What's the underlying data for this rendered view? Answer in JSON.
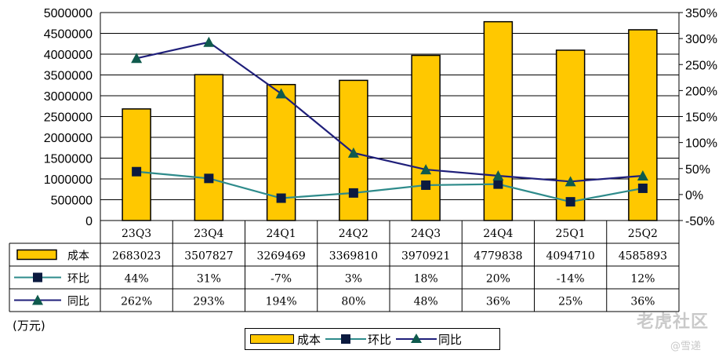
{
  "chart_data": {
    "type": "bar",
    "title": "",
    "categories": [
      "23Q3",
      "23Q4",
      "24Q1",
      "24Q2",
      "24Q3",
      "24Q4",
      "25Q1",
      "25Q2"
    ],
    "unit_label": "(万元)",
    "y_left": {
      "ylim": [
        0,
        5000000
      ],
      "ticks": [
        "0",
        "500000",
        "1000000",
        "1500000",
        "2000000",
        "2500000",
        "3000000",
        "3500000",
        "4000000",
        "4500000",
        "5000000"
      ]
    },
    "y_right": {
      "ylim": [
        -50,
        350
      ],
      "ticks": [
        "-50%",
        "0%",
        "50%",
        "100%",
        "150%",
        "200%",
        "250%",
        "300%",
        "350%"
      ]
    },
    "series": [
      {
        "name": "成本",
        "type": "bar",
        "axis": "left",
        "color": "#ffc800",
        "values": [
          2683023,
          3507827,
          3269469,
          3369810,
          3970921,
          4779838,
          4094710,
          4585893
        ],
        "labels": [
          "2683023",
          "3507827",
          "3269469",
          "3369810",
          "3970921",
          "4779838",
          "4094710",
          "4585893"
        ]
      },
      {
        "name": "环比",
        "type": "line",
        "axis": "right",
        "color": "#2e8b8b",
        "marker": "square",
        "values": [
          44,
          31,
          -7,
          3,
          18,
          20,
          -14,
          12
        ],
        "labels": [
          "44%",
          "31%",
          "-7%",
          "3%",
          "18%",
          "20%",
          "-14%",
          "12%"
        ]
      },
      {
        "name": "同比",
        "type": "line",
        "axis": "right",
        "color": "#1f1f7a",
        "marker": "triangle",
        "values": [
          262,
          293,
          194,
          80,
          48,
          36,
          25,
          36
        ],
        "labels": [
          "262%",
          "293%",
          "194%",
          "80%",
          "48%",
          "36%",
          "25%",
          "36%"
        ]
      }
    ],
    "legend": [
      "成本",
      "环比",
      "同比"
    ],
    "grid": true
  },
  "watermark": "老虎社区",
  "watermark_sub": "@雪递"
}
